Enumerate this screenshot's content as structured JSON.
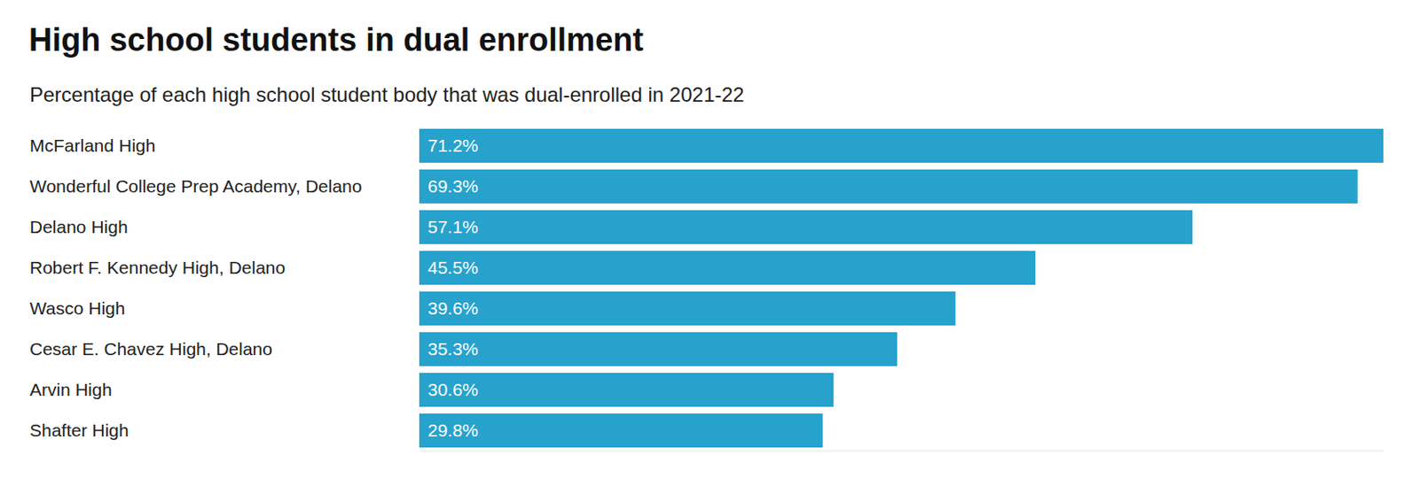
{
  "chart_data": {
    "type": "bar",
    "title": "High school students in dual enrollment",
    "subtitle": "Percentage of each high school student body that was dual-enrolled in 2021-22",
    "categories": [
      "McFarland High",
      "Wonderful College Prep Academy, Delano",
      "Delano High",
      "Robert F. Kennedy High, Delano",
      "Wasco High",
      "Cesar E. Chavez High, Delano",
      "Arvin High",
      "Shafter High"
    ],
    "values": [
      71.2,
      69.3,
      57.1,
      45.5,
      39.6,
      35.3,
      30.6,
      29.8
    ],
    "value_labels": [
      "71.2%",
      "69.3%",
      "57.1%",
      "45.5%",
      "39.6%",
      "35.3%",
      "30.6%",
      "29.8%"
    ],
    "color": "#27a2cc",
    "orientation": "horizontal",
    "xlim": [
      0,
      71.2
    ],
    "data_labels": true,
    "tick_labels": "y"
  }
}
